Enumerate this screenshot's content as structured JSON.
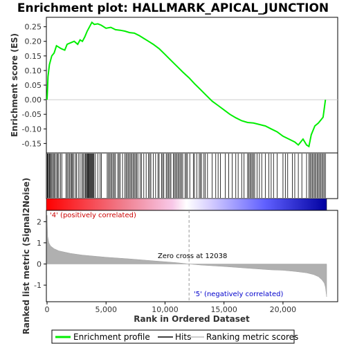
{
  "chart_data": {
    "type": "line",
    "title": "Enrichment plot: HALLMARK_APICAL_JUNCTION",
    "ylabel_top": "Enrichment score (ES)",
    "ylabel_bottom": "Ranked list metric (Signal2Noise)",
    "xlabel": "Rank in Ordered Dataset",
    "x_ticks": [
      "0",
      "5,000",
      "10,000",
      "15,000",
      "20,000"
    ],
    "es_y_ticks": [
      "0.25",
      "0.20",
      "0.15",
      "0.10",
      "0.05",
      "0.00",
      "-0.05",
      "-0.10",
      "-0.15"
    ],
    "metric_y_ticks": [
      "2",
      "1",
      "0",
      "-1"
    ],
    "xlim": [
      0,
      23700
    ],
    "es_ylim": [
      -0.18,
      0.28
    ],
    "metric_ylim": [
      -1.75,
      2.5
    ],
    "zero_cross_label": "Zero cross at 12038",
    "zero_cross": 12038,
    "pos_label": "'4' (positively correlated)",
    "neg_label": "'5' (negatively correlated)",
    "series": [
      {
        "name": "Enrichment profile",
        "color": "#00ee00",
        "x": [
          0,
          80,
          200,
          400,
          600,
          800,
          1000,
          1200,
          1500,
          1700,
          2000,
          2300,
          2600,
          2800,
          3000,
          3200,
          3400,
          3600,
          3800,
          4000,
          4300,
          4600,
          5000,
          5400,
          5800,
          6200,
          6600,
          7000,
          7400,
          7800,
          8200,
          8600,
          9000,
          9500,
          10000,
          10500,
          11000,
          11500,
          12038,
          12500,
          13000,
          13500,
          14000,
          14500,
          15000,
          15500,
          16000,
          16500,
          17000,
          17500,
          18000,
          18500,
          19000,
          19500,
          20000,
          20500,
          21000,
          21300,
          21700,
          22000,
          22200,
          22400,
          22700,
          23000,
          23200,
          23400,
          23600
        ],
        "y": [
          0.0,
          0.08,
          0.12,
          0.15,
          0.16,
          0.185,
          0.18,
          0.175,
          0.17,
          0.19,
          0.195,
          0.2,
          0.19,
          0.205,
          0.2,
          0.215,
          0.235,
          0.25,
          0.265,
          0.258,
          0.26,
          0.255,
          0.245,
          0.248,
          0.24,
          0.238,
          0.235,
          0.23,
          0.228,
          0.22,
          0.21,
          0.2,
          0.19,
          0.175,
          0.155,
          0.135,
          0.115,
          0.095,
          0.075,
          0.055,
          0.035,
          0.015,
          -0.005,
          -0.02,
          -0.035,
          -0.05,
          -0.062,
          -0.072,
          -0.078,
          -0.08,
          -0.085,
          -0.09,
          -0.1,
          -0.11,
          -0.125,
          -0.135,
          -0.145,
          -0.155,
          -0.135,
          -0.155,
          -0.16,
          -0.12,
          -0.09,
          -0.08,
          -0.07,
          -0.06,
          0.0
        ]
      }
    ],
    "hits": [
      20,
      60,
      120,
      200,
      260,
      350,
      420,
      530,
      600,
      700,
      820,
      900,
      1000,
      1150,
      1250,
      1600,
      1700,
      1800,
      1900,
      2000,
      2100,
      2150,
      2250,
      2400,
      2500,
      2650,
      2800,
      2950,
      3050,
      3150,
      3250,
      3320,
      3400,
      3450,
      3500,
      3560,
      3620,
      3680,
      3740,
      3800,
      3860,
      3920,
      3980,
      4100,
      4300,
      4500,
      4600,
      5100,
      5200,
      5300,
      5400,
      5500,
      5600,
      5700,
      5800,
      6000,
      6100,
      6200,
      6400,
      6600,
      6700,
      6800,
      6900,
      7000,
      7100,
      7200,
      7300,
      7400,
      7500,
      7600,
      7700,
      7900,
      8000,
      8200,
      8400,
      8600,
      8700,
      8800,
      9000,
      9200,
      9400,
      9500,
      9700,
      9800,
      9900,
      10100,
      10200,
      10300,
      10400,
      10500,
      10700,
      10800,
      10900,
      11000,
      11100,
      11200,
      11300,
      11400,
      11500,
      11700,
      11800,
      11900,
      12100,
      12400,
      12500,
      12700,
      12900,
      13000,
      13100,
      13300,
      13400,
      13600,
      14000,
      14300,
      14500,
      14700,
      15100,
      15400,
      15700,
      16000,
      16200,
      16500,
      16700,
      17000,
      17100,
      17200,
      17300,
      17400,
      17500,
      17600,
      17800,
      18000,
      18200,
      18500,
      18800,
      19000,
      19200,
      19500,
      20000,
      20200,
      20400,
      20800,
      21000,
      21300,
      21600,
      22000,
      22200,
      22300,
      22400,
      22500,
      22600,
      22700,
      22800,
      22900,
      23000,
      23100,
      23200,
      23300,
      23400,
      23500,
      23600
    ],
    "metric_profile": {
      "x": [
        0,
        50,
        150,
        300,
        600,
        1000,
        2000,
        3000,
        5000,
        7000,
        9000,
        11000,
        12038,
        13000,
        15000,
        17000,
        19000,
        20000,
        21000,
        22000,
        22600,
        23000,
        23300,
        23500,
        23600,
        23700
      ],
      "y": [
        2.3,
        1.3,
        1.0,
        0.85,
        0.72,
        0.62,
        0.5,
        0.42,
        0.32,
        0.24,
        0.15,
        0.06,
        0.0,
        -0.05,
        -0.12,
        -0.2,
        -0.28,
        -0.3,
        -0.35,
        -0.42,
        -0.5,
        -0.6,
        -0.75,
        -0.9,
        -1.1,
        -1.55
      ]
    }
  },
  "legend": {
    "items": [
      {
        "label": "Enrichment profile",
        "color": "#00ee00"
      },
      {
        "label": "Hits",
        "color": "#000000"
      },
      {
        "label": "Ranking metric scores",
        "color": "#bbbbbb"
      }
    ]
  }
}
